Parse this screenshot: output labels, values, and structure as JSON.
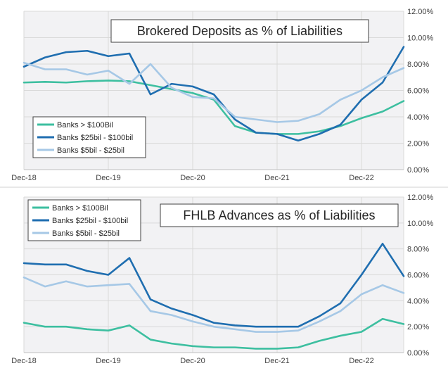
{
  "chart_data": [
    {
      "type": "line",
      "title": "Brokered Deposits as % of Liabilities",
      "xlabel": "",
      "ylabel": "",
      "ylim": [
        0,
        0.12
      ],
      "y_ticks": [
        "0.00%",
        "2.00%",
        "4.00%",
        "6.00%",
        "8.00%",
        "10.00%",
        "12.00%"
      ],
      "x_tick_labels": [
        "Dec-18",
        "Dec-19",
        "Dec-20",
        "Dec-21",
        "Dec-22"
      ],
      "x_tick_positions": [
        0,
        4,
        8,
        12,
        16
      ],
      "x_range": [
        0,
        18
      ],
      "grid": true,
      "legend_position": "bottom-left",
      "series": [
        {
          "name": "Banks > $100Bil",
          "color": "#3dbfa0",
          "values": [
            0.066,
            0.0665,
            0.066,
            0.067,
            0.0675,
            0.067,
            0.064,
            0.061,
            0.058,
            0.053,
            0.033,
            0.028,
            0.027,
            0.027,
            0.029,
            0.033,
            0.039,
            0.044,
            0.052
          ]
        },
        {
          "name": "Banks $25bil - $100bil",
          "color": "#1f6eb0",
          "values": [
            0.078,
            0.085,
            0.089,
            0.09,
            0.086,
            0.088,
            0.057,
            0.065,
            0.063,
            0.057,
            0.038,
            0.028,
            0.027,
            0.022,
            0.027,
            0.034,
            0.053,
            0.066,
            0.093
          ]
        },
        {
          "name": "Banks $5bil - $25bil",
          "color": "#a6c8e6",
          "values": [
            0.081,
            0.076,
            0.076,
            0.072,
            0.075,
            0.065,
            0.08,
            0.062,
            0.055,
            0.054,
            0.04,
            0.038,
            0.036,
            0.037,
            0.042,
            0.053,
            0.06,
            0.07,
            0.077
          ]
        }
      ]
    },
    {
      "type": "line",
      "title": "FHLB Advances as % of Liabilities",
      "xlabel": "",
      "ylabel": "",
      "ylim": [
        0,
        0.12
      ],
      "y_ticks": [
        "0.00%",
        "2.00%",
        "4.00%",
        "6.00%",
        "8.00%",
        "10.00%",
        "12.00%"
      ],
      "x_tick_labels": [
        "Dec-18",
        "Dec-19",
        "Dec-20",
        "Dec-21",
        "Dec-22"
      ],
      "x_tick_positions": [
        0,
        4,
        8,
        12,
        16
      ],
      "x_range": [
        0,
        18
      ],
      "grid": true,
      "legend_position": "top-left",
      "series": [
        {
          "name": "Banks > $100Bil",
          "color": "#3dbfa0",
          "values": [
            0.023,
            0.02,
            0.02,
            0.018,
            0.017,
            0.021,
            0.01,
            0.007,
            0.005,
            0.004,
            0.004,
            0.003,
            0.003,
            0.004,
            0.009,
            0.013,
            0.016,
            0.026,
            0.022
          ]
        },
        {
          "name": "Banks $25bil - $100bil",
          "color": "#1f6eb0",
          "values": [
            0.069,
            0.068,
            0.068,
            0.063,
            0.06,
            0.073,
            0.041,
            0.034,
            0.029,
            0.023,
            0.021,
            0.02,
            0.02,
            0.02,
            0.028,
            0.038,
            0.06,
            0.084,
            0.059
          ]
        },
        {
          "name": "Banks $5bil - $25bil",
          "color": "#a6c8e6",
          "values": [
            0.058,
            0.051,
            0.055,
            0.051,
            0.052,
            0.053,
            0.032,
            0.029,
            0.024,
            0.02,
            0.018,
            0.016,
            0.016,
            0.017,
            0.024,
            0.032,
            0.045,
            0.052,
            0.046
          ]
        }
      ]
    }
  ]
}
